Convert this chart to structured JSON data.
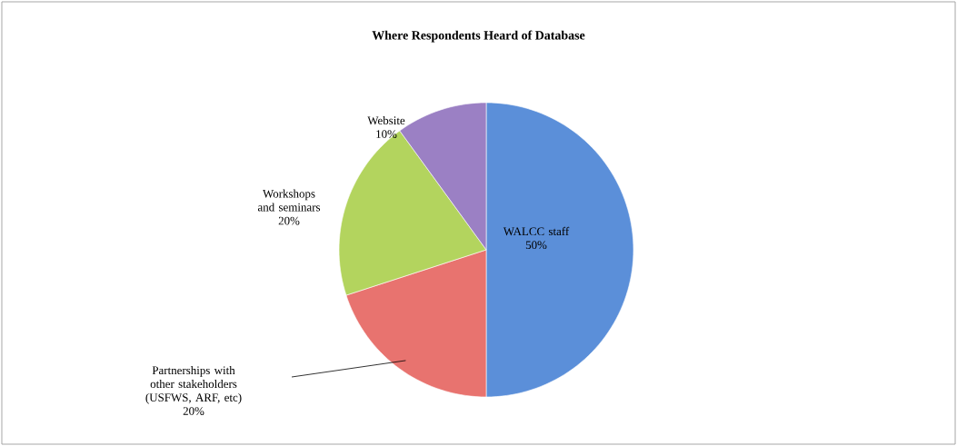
{
  "chart_data": {
    "type": "pie",
    "title": "Where Respondents Heard of Database",
    "categories": [
      "WALCC staff",
      "Partnerships with other stakeholders (USFWS, ARF, etc)",
      "Workshops and seminars",
      "Website"
    ],
    "values": [
      50,
      20,
      20,
      10
    ],
    "value_labels": [
      "50%",
      "20%",
      "20%",
      "10%"
    ],
    "colors": [
      "#5b8fd9",
      "#e8736f",
      "#b3d45e",
      "#9b80c4"
    ]
  }
}
